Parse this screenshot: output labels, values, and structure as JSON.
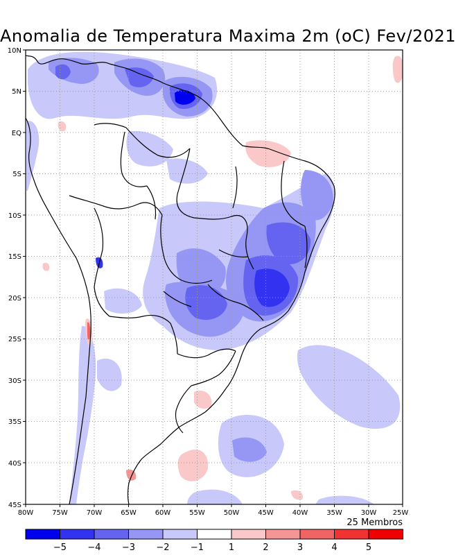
{
  "title": "Anomalia de Temperatura Maxima 2m (oC) Fev/2021",
  "note": "25 Membros",
  "lat_labels": [
    "10N",
    "5N",
    "EQ",
    "5S",
    "10S",
    "15S",
    "20S",
    "25S",
    "30S",
    "35S",
    "40S",
    "45S"
  ],
  "lon_labels": [
    "80W",
    "75W",
    "70W",
    "65W",
    "60W",
    "55W",
    "50W",
    "45W",
    "40W",
    "35W",
    "30W",
    "25W"
  ],
  "colorbar": {
    "colors": [
      "#0000f0",
      "#3232f0",
      "#6464f0",
      "#9696f5",
      "#c8c8fa",
      "#ffffff",
      "#fac8c8",
      "#f59696",
      "#f06464",
      "#f03232",
      "#f00000"
    ],
    "labels": [
      "-5",
      "-4",
      "-3",
      "-2",
      "-1",
      "1",
      "2",
      "3",
      "4",
      "5"
    ]
  }
}
